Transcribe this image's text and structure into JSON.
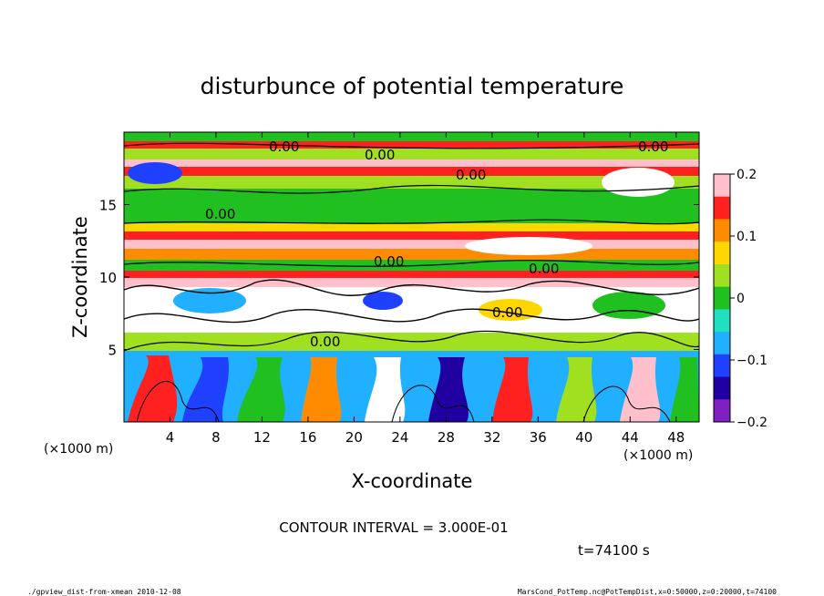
{
  "chart_data": {
    "type": "heatmap",
    "title": "disturbunce of potential temperature",
    "xlabel": "X-coordinate",
    "ylabel": "Z-coordinate",
    "x_unit": "(×1000 m)",
    "y_unit": "(×1000 m)",
    "xlim": [
      0,
      50
    ],
    "ylim": [
      0,
      20
    ],
    "x_ticks": [
      4,
      8,
      12,
      16,
      20,
      24,
      28,
      32,
      36,
      40,
      44,
      48
    ],
    "y_ticks": [
      5,
      10,
      15
    ],
    "colorbar": {
      "range": [
        -0.2,
        0.2
      ],
      "tick_values": [
        0.2,
        0.1,
        0,
        -0.1,
        -0.2
      ],
      "tick_labels": [
        "0.2",
        "0.1",
        "0",
        "−0.1",
        "−0.2"
      ],
      "colors": [
        "#ffc0cb",
        "#ff2020",
        "#ff8c00",
        "#ffd700",
        "#a0e020",
        "#20c020",
        "#20e0c0",
        "#20b0ff",
        "#2040ff",
        "#2000a0",
        "#8020c0"
      ]
    },
    "contour_labels": [
      "0.00",
      "0.00",
      "0.00",
      "0.00",
      "0.00",
      "0.00",
      "0.00",
      "0.00",
      "0.00"
    ],
    "contour_interval_text": "CONTOUR INTERVAL = 3.000E-01",
    "time_text": "t=74100 s"
  },
  "footer": {
    "left": "./gpview_dist-from-xmean  2010-12-08",
    "right": "MarsCond_PotTemp.nc@PotTempDist,x=0:50000,z=0:20000,t=74100"
  }
}
